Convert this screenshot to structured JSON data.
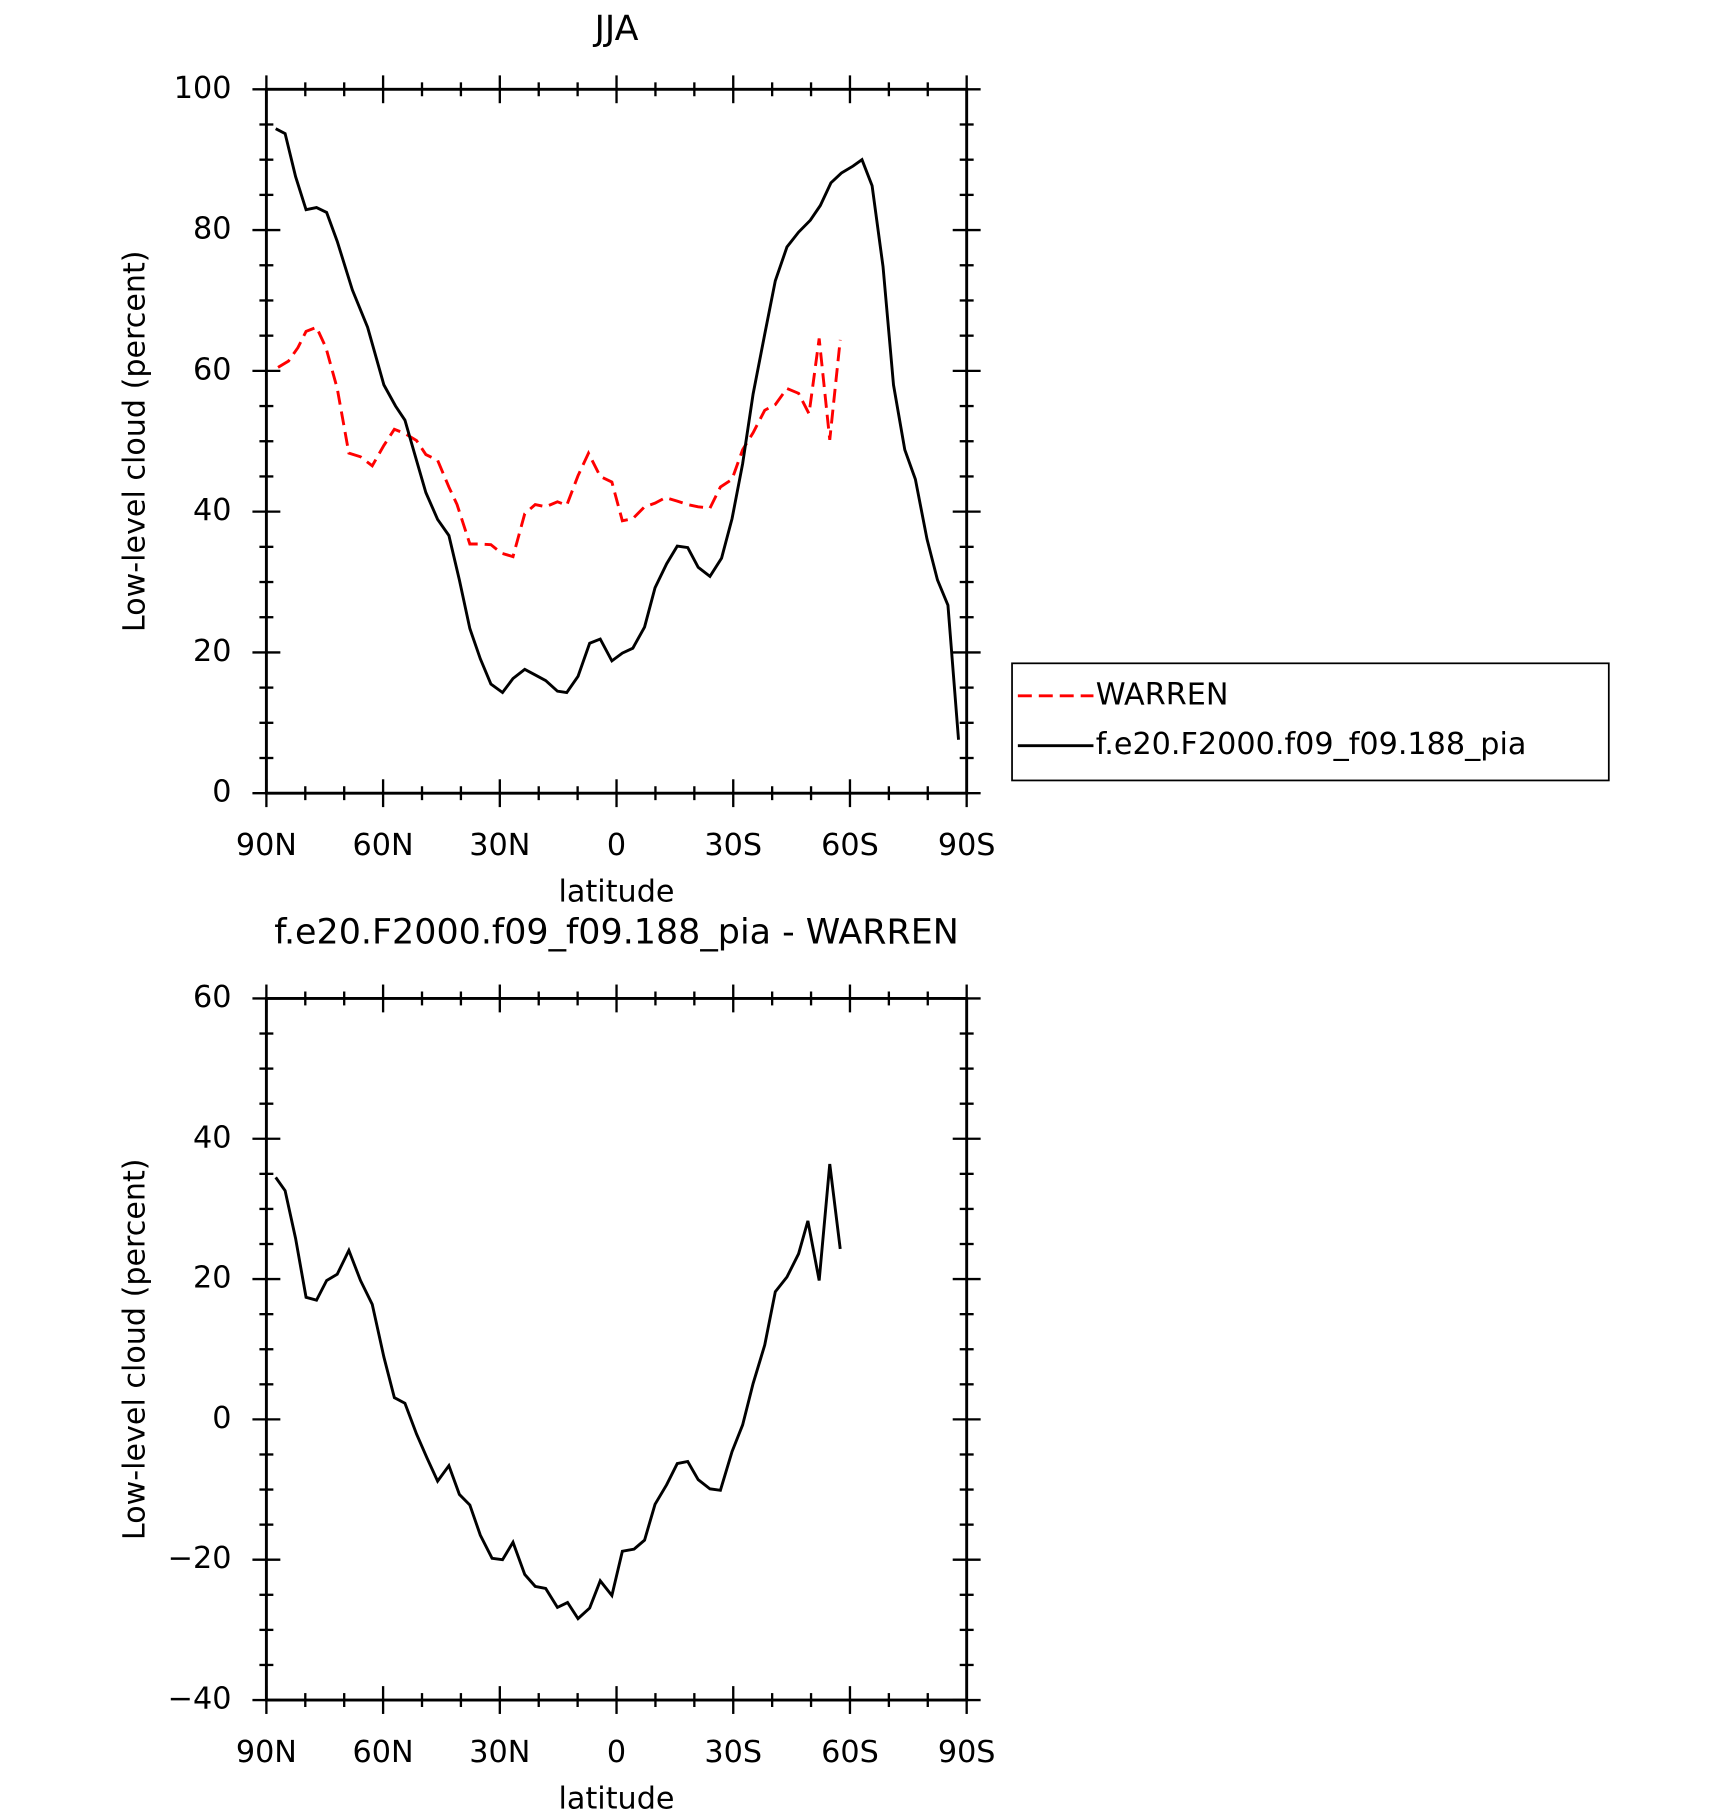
{
  "chart_data": [
    {
      "type": "line",
      "title": "JJA",
      "xlabel": "latitude",
      "ylabel": "Low-level cloud (percent)",
      "xlim": [
        90,
        -90
      ],
      "xticks": [
        {
          "value": 90,
          "label": "90N"
        },
        {
          "value": 60,
          "label": "60N"
        },
        {
          "value": 30,
          "label": "30N"
        },
        0,
        {
          "value": -30,
          "label": "30S"
        },
        {
          "value": -60,
          "label": "60S"
        },
        {
          "value": -90,
          "label": "90S"
        }
      ],
      "xminorticks": [
        80,
        70,
        50,
        40,
        20,
        10,
        -10,
        -20,
        -40,
        -50,
        -70,
        -80
      ],
      "ylim": [
        0,
        100
      ],
      "yticks": [
        0,
        20,
        40,
        60,
        80,
        100
      ],
      "yminorticks": [
        5,
        10,
        15,
        25,
        30,
        35,
        45,
        50,
        55,
        65,
        70,
        75,
        85,
        90,
        95
      ],
      "legend": "right",
      "series": [
        {
          "name": "WARREN",
          "color": "#ff0000",
          "dash": true,
          "x": [
            87.0,
            84.3,
            81.9,
            79.8,
            77.1,
            74.7,
            71.8,
            68.8,
            65.8,
            62.8,
            59.8,
            57.1,
            54.4,
            51.4,
            49.0,
            46.0,
            43.1,
            41.0,
            37.7,
            35.0,
            32.3,
            29.6,
            26.6,
            23.6,
            20.9,
            18.2,
            15.2,
            12.8,
            9.9,
            7.2,
            4.2,
            1.2,
            -1.5,
            -4.2,
            -7.2,
            -9.9,
            -12.6,
            -15.6,
            -18.3,
            -21.0,
            -24.0,
            -26.7,
            -29.7,
            -32.4,
            -35.1,
            -38.1,
            -40.8,
            -43.8,
            -46.8,
            -49.5,
            -52.1,
            -54.8,
            -57.5
          ],
          "values": [
            60.5,
            61.4,
            63.3,
            65.6,
            66.2,
            63.3,
            57.5,
            48.3,
            47.8,
            46.5,
            49.4,
            51.7,
            51.1,
            50.1,
            48.1,
            47.3,
            43.5,
            41.0,
            35.4,
            35.4,
            35.3,
            34.1,
            33.6,
            39.7,
            41.0,
            40.7,
            41.4,
            40.9,
            45.1,
            48.3,
            45.0,
            44.2,
            38.7,
            39.0,
            40.7,
            41.2,
            42.0,
            41.5,
            41.0,
            40.7,
            40.5,
            43.5,
            44.6,
            48.8,
            51.2,
            54.4,
            55.2,
            57.5,
            56.8,
            53.9,
            64.6,
            50.2,
            64.4
          ]
        },
        {
          "name": "f.e20.F2000.f09_f09.188_pia",
          "color": "#000000",
          "dash": false,
          "x": [
            87.6,
            85.2,
            82.5,
            79.8,
            77.1,
            74.5,
            71.8,
            67.9,
            64.0,
            59.8,
            56.8,
            54.4,
            52.0,
            49.0,
            46.0,
            43.1,
            40.4,
            37.7,
            35.0,
            32.3,
            29.3,
            26.6,
            23.6,
            20.9,
            18.2,
            15.2,
            12.8,
            9.9,
            6.9,
            4.2,
            1.2,
            -1.5,
            -4.2,
            -7.2,
            -9.9,
            -12.9,
            -15.6,
            -18.3,
            -21.0,
            -24.0,
            -27.0,
            -29.7,
            -32.4,
            -35.1,
            -38.1,
            -40.8,
            -43.8,
            -46.8,
            -49.8,
            -52.4,
            -55.1,
            -57.8,
            -60.8,
            -63.1,
            -65.7,
            -68.5,
            -71.2,
            -74.1,
            -76.8,
            -79.8,
            -82.5,
            -85.2,
            -87.9
          ],
          "values": [
            94.4,
            93.7,
            87.6,
            82.9,
            83.2,
            82.5,
            78.4,
            71.5,
            66.2,
            58.0,
            55.0,
            53.0,
            48.4,
            42.7,
            38.9,
            36.6,
            30.3,
            23.4,
            19.1,
            15.5,
            14.3,
            16.3,
            17.6,
            16.8,
            16.0,
            14.5,
            14.3,
            16.6,
            21.3,
            21.9,
            18.8,
            19.9,
            20.6,
            23.6,
            29.2,
            32.6,
            35.1,
            34.9,
            32.1,
            30.8,
            33.4,
            39.0,
            46.8,
            56.7,
            65.2,
            72.8,
            77.6,
            79.7,
            81.4,
            83.5,
            86.7,
            88.1,
            89.1,
            90.0,
            86.3,
            74.8,
            58.0,
            48.8,
            44.6,
            36.1,
            30.3,
            26.7,
            7.6
          ]
        }
      ]
    },
    {
      "type": "line",
      "title": "f.e20.F2000.f09_f09.188_pia - WARREN",
      "xlabel": "latitude",
      "ylabel": "Low-level cloud (percent)",
      "xlim": [
        90,
        -90
      ],
      "xticks": [
        {
          "value": 90,
          "label": "90N"
        },
        {
          "value": 60,
          "label": "60N"
        },
        {
          "value": 30,
          "label": "30N"
        },
        0,
        {
          "value": -30,
          "label": "30S"
        },
        {
          "value": -60,
          "label": "60S"
        },
        {
          "value": -90,
          "label": "90S"
        }
      ],
      "xminorticks": [
        80,
        70,
        50,
        40,
        20,
        10,
        -10,
        -20,
        -40,
        -50,
        -70,
        -80
      ],
      "ylim": [
        -40,
        60
      ],
      "yticks": [
        {
          "value": -40,
          "label": "−40"
        },
        {
          "value": -20,
          "label": "−20"
        },
        0,
        20,
        40,
        60
      ],
      "yminorticks": [
        -35,
        -30,
        -25,
        -15,
        -10,
        -5,
        5,
        10,
        15,
        25,
        30,
        35,
        45,
        50,
        55
      ],
      "series": [
        {
          "color": "#000000",
          "dash": false,
          "x": [
            87.6,
            85.2,
            82.5,
            79.8,
            77.1,
            74.5,
            71.8,
            68.8,
            65.8,
            62.8,
            59.8,
            57.1,
            54.4,
            51.4,
            48.7,
            46.0,
            43.1,
            40.4,
            37.7,
            35.0,
            32.0,
            29.3,
            26.6,
            23.6,
            20.9,
            18.2,
            15.2,
            12.6,
            9.9,
            6.9,
            4.2,
            1.2,
            -1.5,
            -4.5,
            -7.2,
            -9.9,
            -12.9,
            -15.6,
            -18.3,
            -21.0,
            -24.0,
            -26.7,
            -29.7,
            -32.4,
            -35.1,
            -38.1,
            -40.8,
            -43.8,
            -46.8,
            -49.2,
            -52.1,
            -54.8,
            -57.5
          ],
          "values": [
            34.5,
            32.6,
            25.8,
            17.4,
            17.0,
            19.8,
            20.7,
            24.1,
            19.8,
            16.4,
            8.9,
            3.1,
            2.3,
            -2.1,
            -5.5,
            -8.8,
            -6.6,
            -10.7,
            -12.2,
            -16.5,
            -19.8,
            -20.0,
            -17.5,
            -22.1,
            -23.8,
            -24.1,
            -26.8,
            -26.1,
            -28.4,
            -26.9,
            -23.0,
            -25.1,
            -18.8,
            -18.5,
            -17.2,
            -12.1,
            -9.3,
            -6.3,
            -6.0,
            -8.6,
            -9.9,
            -10.1,
            -4.6,
            -0.8,
            5.1,
            10.6,
            18.2,
            20.3,
            23.6,
            28.3,
            19.8,
            36.4,
            24.3
          ]
        }
      ]
    }
  ]
}
